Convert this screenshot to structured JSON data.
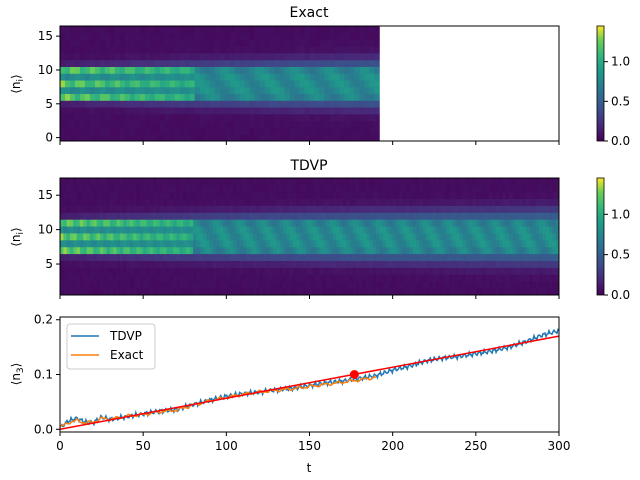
{
  "chart_data": [
    {
      "type": "heatmap",
      "title": "Exact",
      "xlabel": "",
      "ylabel": "⟨n_i⟩",
      "ylabel_main": "⟨n",
      "ylabel_sub": "i",
      "xlim": [
        0,
        300
      ],
      "ylim": [
        -0.5,
        16.5
      ],
      "yticks": [
        0,
        5,
        10,
        15
      ],
      "xticks": [
        0,
        50,
        100,
        150,
        200,
        250,
        300
      ],
      "data_extent_t": [
        0,
        192
      ],
      "sites": 17,
      "colormap": "viridis",
      "colorbar": {
        "ticks": [
          "0.0",
          "0.5",
          "1.0"
        ],
        "range": [
          0,
          1.45
        ]
      },
      "description": "Density bands at sites 6-10 (alternating high/low) decaying and spreading over time; data present only up to t≈192"
    },
    {
      "type": "heatmap",
      "title": "TDVP",
      "xlabel": "",
      "ylabel": "⟨n_i⟩",
      "ylabel_main": "⟨n",
      "ylabel_sub": "i",
      "xlim": [
        0,
        300
      ],
      "ylim": [
        0.5,
        17.5
      ],
      "yticks": [
        5,
        10,
        15
      ],
      "xticks": [
        0,
        50,
        100,
        150,
        200,
        250,
        300
      ],
      "data_extent_t": [
        0,
        300
      ],
      "sites": 17,
      "colormap": "viridis",
      "colorbar": {
        "ticks": [
          "0.0",
          "0.5",
          "1.0"
        ],
        "range": [
          0,
          1.45
        ]
      },
      "description": "Density bands at sites 7-11 alternating high/low, spreading and evening out over time"
    },
    {
      "type": "line",
      "title": "",
      "xlabel": "t",
      "ylabel": "⟨n_3⟩",
      "ylabel_main": "⟨n",
      "ylabel_sub": "3",
      "xlim": [
        0,
        300
      ],
      "ylim": [
        -0.005,
        0.205
      ],
      "xticks": [
        "0",
        "50",
        "100",
        "150",
        "200",
        "250",
        "300"
      ],
      "yticks": [
        "0.0",
        "0.1",
        "0.2"
      ],
      "legend": {
        "placement": "upper-left",
        "entries": [
          "TDVP",
          "Exact"
        ]
      },
      "series": [
        {
          "name": "TDVP",
          "color": "#1f77b4",
          "x": [
            0,
            5,
            10,
            15,
            20,
            25,
            30,
            40,
            50,
            60,
            70,
            80,
            90,
            100,
            110,
            120,
            130,
            140,
            150,
            160,
            170,
            180,
            190,
            200,
            210,
            220,
            230,
            240,
            250,
            260,
            270,
            280,
            290,
            300
          ],
          "y": [
            0.003,
            0.015,
            0.02,
            0.013,
            0.012,
            0.022,
            0.018,
            0.023,
            0.028,
            0.033,
            0.036,
            0.045,
            0.053,
            0.06,
            0.065,
            0.068,
            0.072,
            0.075,
            0.08,
            0.085,
            0.088,
            0.093,
            0.098,
            0.108,
            0.115,
            0.125,
            0.13,
            0.133,
            0.138,
            0.143,
            0.15,
            0.16,
            0.172,
            0.18
          ]
        },
        {
          "name": "Exact",
          "color": "#ff7f0e",
          "x": [
            0,
            5,
            10,
            15,
            20,
            25,
            30,
            40,
            50,
            60,
            70,
            80,
            90,
            100,
            110,
            120,
            130,
            140,
            150,
            160,
            170,
            180,
            190
          ],
          "y": [
            0.003,
            0.012,
            0.016,
            0.012,
            0.013,
            0.02,
            0.018,
            0.024,
            0.027,
            0.032,
            0.035,
            0.044,
            0.052,
            0.058,
            0.064,
            0.068,
            0.071,
            0.074,
            0.078,
            0.082,
            0.086,
            0.09,
            0.095
          ]
        },
        {
          "name": "fit",
          "color": "#ff0000",
          "x": [
            0,
            300
          ],
          "y": [
            0.0,
            0.17
          ]
        }
      ],
      "marker": {
        "x": 177,
        "y": 0.1,
        "color": "#ff0000"
      }
    }
  ]
}
